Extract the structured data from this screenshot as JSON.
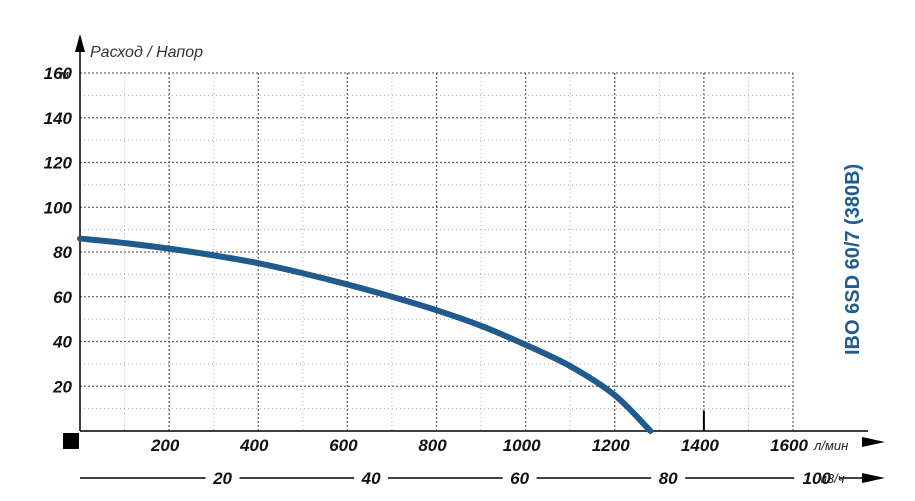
{
  "chart_data": {
    "type": "line",
    "title": "Расход / Напор",
    "model_label": "IBO 6SD 60/7 (380В)",
    "y_axis": {
      "unit": "м",
      "ylim": [
        0,
        160
      ],
      "ticks": [
        20,
        40,
        60,
        80,
        100,
        120,
        140,
        160
      ],
      "minor_step": 10
    },
    "x_axis": {
      "unit": "л/мин",
      "xlim": [
        0,
        1600
      ],
      "ticks": [
        200,
        400,
        600,
        800,
        1000,
        1200,
        1400,
        1600
      ],
      "minor_step": 100
    },
    "x2_axis": {
      "unit": "м3/ч",
      "ticks": [
        20,
        40,
        60,
        80,
        100
      ],
      "lpm_per_unit": 16.6667
    },
    "grid": true,
    "series": [
      {
        "color": "#1f5b8c",
        "points": [
          [
            0,
            86
          ],
          [
            100,
            84
          ],
          [
            200,
            81.5
          ],
          [
            300,
            78.5
          ],
          [
            400,
            75
          ],
          [
            500,
            70.5
          ],
          [
            600,
            65.5
          ],
          [
            700,
            60
          ],
          [
            800,
            54
          ],
          [
            900,
            47
          ],
          [
            1000,
            38.5
          ],
          [
            1100,
            29
          ],
          [
            1200,
            16
          ],
          [
            1280,
            0
          ]
        ]
      }
    ]
  }
}
